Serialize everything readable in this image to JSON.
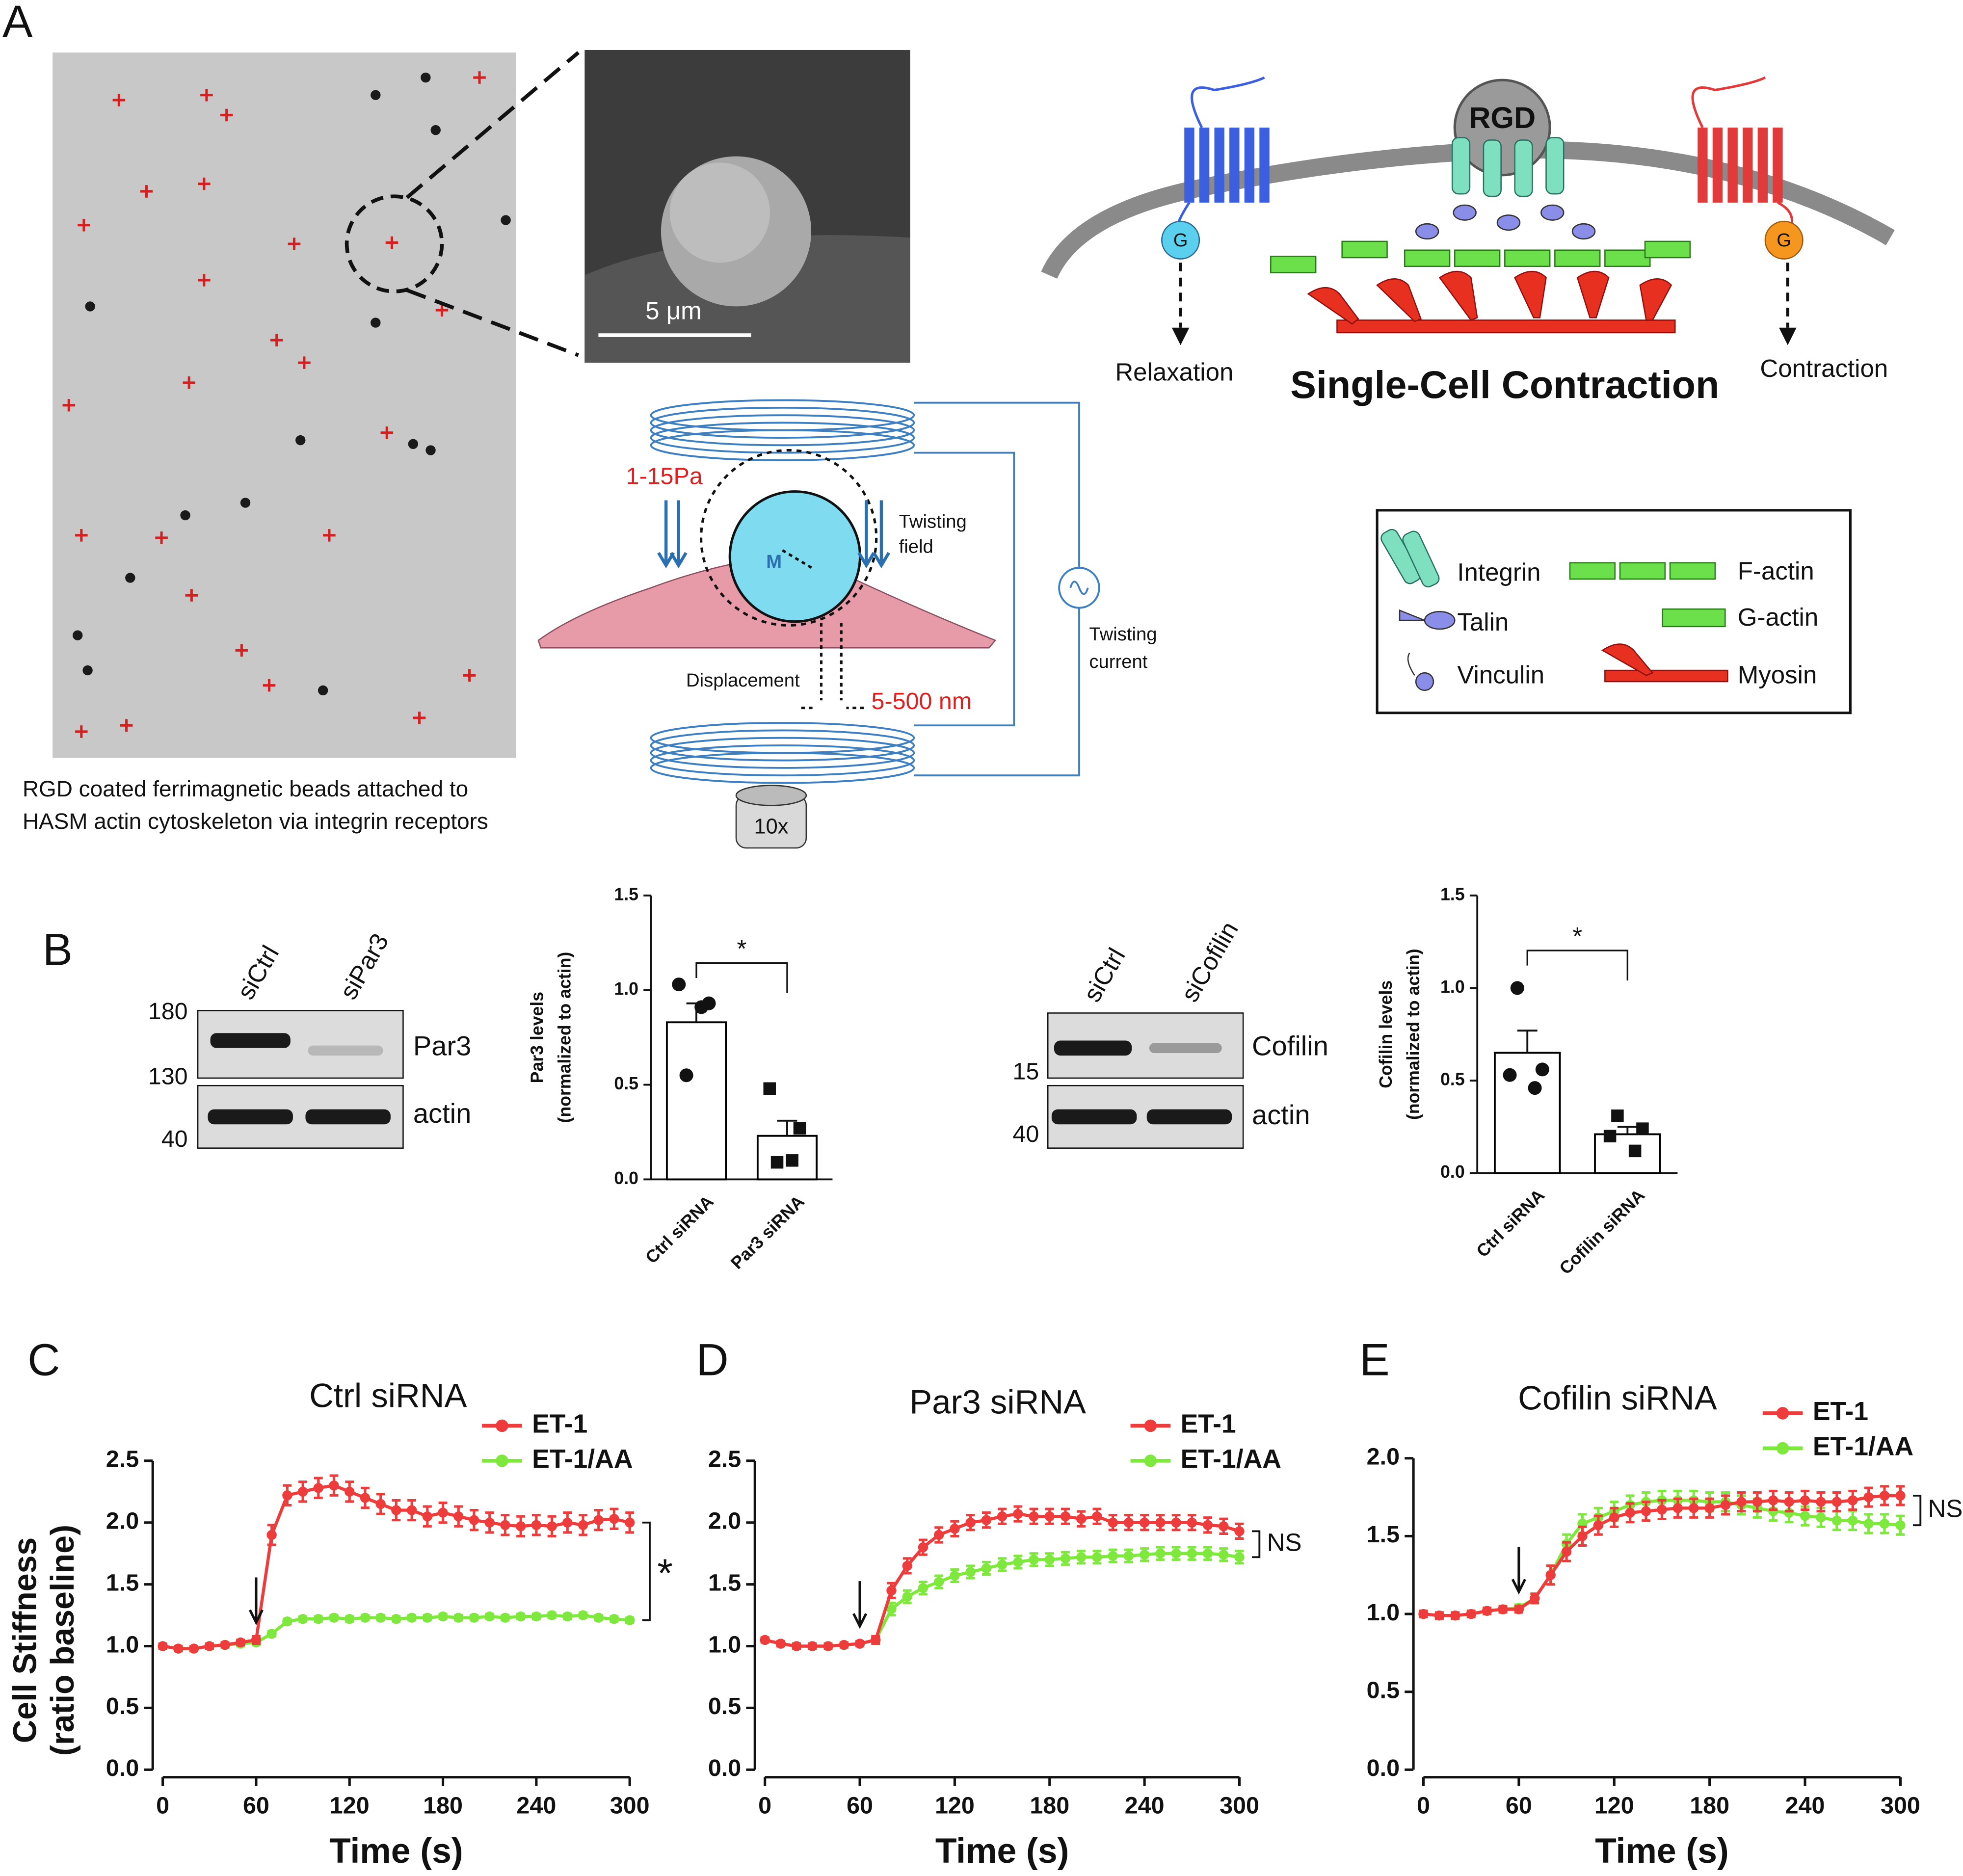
{
  "panel_labels": [
    "A",
    "B",
    "C",
    "D",
    "E"
  ],
  "panel_a": {
    "caption": [
      "RGD coated ferrimagnetic beads attached to",
      "HASM actin cytoskeleton via integrin receptors"
    ],
    "scale_bar": "5 μm",
    "twisting": {
      "stress": "1-15Pa",
      "field": [
        "Twisting",
        "field"
      ],
      "moment": "M",
      "current": [
        "Twisting",
        "current"
      ],
      "displacement": "Displacement",
      "range": "5-500 nm",
      "objective": "10x"
    },
    "schematic": {
      "ligand": "RGD",
      "g_protein_left": "G",
      "g_protein_right": "G",
      "left_outcome": "Relaxation",
      "right_outcome": "Contraction",
      "title": "Single-Cell Contraction"
    },
    "legend": {
      "integrin": "Integrin",
      "f_actin": "F-actin",
      "talin": "Talin",
      "g_actin": "G-actin",
      "vinculin": "Vinculin",
      "myosin": "Myosin"
    }
  },
  "blots": [
    {
      "lanes": [
        "siCtrl",
        "siPar3"
      ],
      "markers": [
        "180",
        "130",
        "40"
      ],
      "bands": [
        "Par3",
        "actin"
      ]
    },
    {
      "lanes": [
        "siCtrl",
        "siCofilin"
      ],
      "markers": [
        "15",
        "40"
      ],
      "bands": [
        "Cofilin",
        "actin"
      ]
    }
  ],
  "chart_data": [
    {
      "type": "bar",
      "ylabel": [
        "Par3 levels",
        "(normalized to actin)"
      ],
      "categories": [
        "Ctrl siRNA",
        "Par3 siRNA"
      ],
      "values": [
        0.83,
        0.23
      ],
      "errors": [
        0.1,
        0.08
      ],
      "points": [
        [
          1.03,
          0.93,
          0.91,
          0.55
        ],
        [
          0.48,
          0.27,
          0.1,
          0.09
        ]
      ],
      "markers": [
        "circle",
        "square"
      ],
      "color": "#ffffff",
      "edgecolor": "#000000",
      "ylim": [
        0,
        1.5
      ],
      "yticks": [
        {
          "value": 0,
          "label": "0.0"
        },
        {
          "value": 0.5,
          "label": "0.5"
        },
        {
          "value": 1,
          "label": "1.0"
        },
        {
          "value": 1.5,
          "label": "1.5"
        }
      ],
      "annotation": "*"
    },
    {
      "type": "bar",
      "ylabel": [
        "Cofilin levels",
        "(normalized to actin)"
      ],
      "categories": [
        "Ctrl siRNA",
        "Cofilin siRNA"
      ],
      "values": [
        0.65,
        0.21
      ],
      "errors": [
        0.12,
        0.04
      ],
      "points": [
        [
          1.0,
          0.56,
          0.53,
          0.46
        ],
        [
          0.31,
          0.24,
          0.2,
          0.12
        ]
      ],
      "markers": [
        "circle",
        "square"
      ],
      "color": "#ffffff",
      "edgecolor": "#000000",
      "ylim": [
        0,
        1.5
      ],
      "yticks": [
        {
          "value": 0,
          "label": "0.0"
        },
        {
          "value": 0.5,
          "label": "0.5"
        },
        {
          "value": 1,
          "label": "1.0"
        },
        {
          "value": 1.5,
          "label": "1.5"
        }
      ],
      "annotation": "*"
    },
    {
      "type": "line",
      "title": "Ctrl siRNA",
      "xlabel": "Time (s)",
      "ylabel": [
        "Cell Stiffness",
        "(ratio baseline)"
      ],
      "x": [
        0,
        10,
        20,
        30,
        40,
        50,
        60,
        70,
        80,
        90,
        100,
        110,
        120,
        130,
        140,
        150,
        160,
        170,
        180,
        190,
        200,
        210,
        220,
        230,
        240,
        250,
        260,
        270,
        280,
        290,
        300
      ],
      "series": [
        {
          "name": "ET-1",
          "color": "#ee3b3b",
          "values": [
            1.0,
            0.98,
            0.98,
            1.0,
            1.01,
            1.03,
            1.05,
            1.9,
            2.22,
            2.25,
            2.28,
            2.3,
            2.25,
            2.2,
            2.15,
            2.1,
            2.1,
            2.05,
            2.08,
            2.05,
            2.02,
            2.0,
            1.98,
            1.97,
            1.98,
            1.97,
            2.0,
            1.98,
            2.02,
            2.03,
            2.0
          ],
          "errors": [
            0.02,
            0.02,
            0.02,
            0.02,
            0.02,
            0.02,
            0.03,
            0.08,
            0.08,
            0.08,
            0.08,
            0.08,
            0.08,
            0.08,
            0.08,
            0.08,
            0.08,
            0.08,
            0.08,
            0.08,
            0.08,
            0.08,
            0.08,
            0.08,
            0.08,
            0.08,
            0.08,
            0.08,
            0.08,
            0.08,
            0.08
          ]
        },
        {
          "name": "ET-1/AA",
          "color": "#7ee83c",
          "values": [
            1.0,
            0.98,
            0.98,
            1.0,
            1.01,
            1.02,
            1.03,
            1.1,
            1.2,
            1.22,
            1.22,
            1.23,
            1.22,
            1.23,
            1.23,
            1.22,
            1.23,
            1.23,
            1.24,
            1.23,
            1.23,
            1.24,
            1.23,
            1.24,
            1.24,
            1.25,
            1.24,
            1.25,
            1.23,
            1.22,
            1.21
          ],
          "errors": [
            0.02,
            0.02,
            0.02,
            0.02,
            0.02,
            0.02,
            0.02,
            0.02,
            0.02,
            0.02,
            0.02,
            0.02,
            0.02,
            0.02,
            0.02,
            0.02,
            0.02,
            0.02,
            0.02,
            0.02,
            0.02,
            0.02,
            0.02,
            0.02,
            0.02,
            0.02,
            0.02,
            0.02,
            0.02,
            0.02,
            0.02
          ]
        }
      ],
      "xlim": [
        0,
        300
      ],
      "xticks": [
        0,
        60,
        120,
        180,
        240,
        300
      ],
      "ylim": [
        0,
        2.5
      ],
      "yticks": [
        {
          "value": 0,
          "label": "0.0"
        },
        {
          "value": 0.5,
          "label": "0.5"
        },
        {
          "value": 1,
          "label": "1.0"
        },
        {
          "value": 1.5,
          "label": "1.5"
        },
        {
          "value": 2,
          "label": "2.0"
        },
        {
          "value": 2.5,
          "label": "2.5"
        }
      ],
      "arrow_at": 60,
      "annotation": "*"
    },
    {
      "type": "line",
      "title": "Par3 siRNA",
      "xlabel": "Time (s)",
      "x": [
        0,
        10,
        20,
        30,
        40,
        50,
        60,
        70,
        80,
        90,
        100,
        110,
        120,
        130,
        140,
        150,
        160,
        170,
        180,
        190,
        200,
        210,
        220,
        230,
        240,
        250,
        260,
        270,
        280,
        290,
        300
      ],
      "series": [
        {
          "name": "ET-1",
          "color": "#ee3b3b",
          "values": [
            1.05,
            1.02,
            1.0,
            1.0,
            1.0,
            1.01,
            1.02,
            1.05,
            1.45,
            1.65,
            1.8,
            1.9,
            1.95,
            2.0,
            2.02,
            2.05,
            2.07,
            2.05,
            2.05,
            2.05,
            2.03,
            2.05,
            2.0,
            2.0,
            2.0,
            2.0,
            2.0,
            2.0,
            1.98,
            1.97,
            1.93
          ],
          "errors": [
            0.02,
            0.02,
            0.02,
            0.02,
            0.02,
            0.02,
            0.02,
            0.03,
            0.06,
            0.06,
            0.06,
            0.06,
            0.06,
            0.06,
            0.06,
            0.06,
            0.06,
            0.06,
            0.06,
            0.06,
            0.06,
            0.06,
            0.06,
            0.06,
            0.06,
            0.06,
            0.06,
            0.06,
            0.06,
            0.06,
            0.06
          ]
        },
        {
          "name": "ET-1/AA",
          "color": "#7ee83c",
          "values": [
            1.05,
            1.02,
            1.0,
            1.0,
            1.0,
            1.01,
            1.02,
            1.05,
            1.3,
            1.4,
            1.47,
            1.52,
            1.57,
            1.6,
            1.63,
            1.66,
            1.68,
            1.7,
            1.7,
            1.71,
            1.72,
            1.72,
            1.73,
            1.73,
            1.74,
            1.75,
            1.75,
            1.75,
            1.75,
            1.74,
            1.72
          ],
          "errors": [
            0.02,
            0.02,
            0.02,
            0.02,
            0.02,
            0.02,
            0.02,
            0.03,
            0.05,
            0.05,
            0.05,
            0.05,
            0.05,
            0.05,
            0.05,
            0.05,
            0.05,
            0.05,
            0.05,
            0.05,
            0.05,
            0.05,
            0.05,
            0.05,
            0.05,
            0.05,
            0.05,
            0.05,
            0.05,
            0.05,
            0.05
          ]
        }
      ],
      "xlim": [
        0,
        300
      ],
      "xticks": [
        0,
        60,
        120,
        180,
        240,
        300
      ],
      "ylim": [
        0,
        2.5
      ],
      "yticks": [
        {
          "value": 0,
          "label": "0.0"
        },
        {
          "value": 0.5,
          "label": "0.5"
        },
        {
          "value": 1,
          "label": "1.0"
        },
        {
          "value": 1.5,
          "label": "1.5"
        },
        {
          "value": 2,
          "label": "2.0"
        },
        {
          "value": 2.5,
          "label": "2.5"
        }
      ],
      "arrow_at": 60,
      "annotation": "NS"
    },
    {
      "type": "line",
      "title": "Cofilin siRNA",
      "xlabel": "Time (s)",
      "x": [
        0,
        10,
        20,
        30,
        40,
        50,
        60,
        70,
        80,
        90,
        100,
        110,
        120,
        130,
        140,
        150,
        160,
        170,
        180,
        190,
        200,
        210,
        220,
        230,
        240,
        250,
        260,
        270,
        280,
        290,
        300
      ],
      "series": [
        {
          "name": "ET-1",
          "color": "#ee3b3b",
          "values": [
            1.0,
            0.99,
            0.99,
            1.0,
            1.02,
            1.03,
            1.03,
            1.1,
            1.25,
            1.4,
            1.5,
            1.57,
            1.62,
            1.65,
            1.66,
            1.67,
            1.68,
            1.68,
            1.68,
            1.7,
            1.72,
            1.72,
            1.73,
            1.72,
            1.73,
            1.72,
            1.72,
            1.73,
            1.75,
            1.76,
            1.76
          ],
          "errors": [
            0.02,
            0.02,
            0.02,
            0.02,
            0.02,
            0.02,
            0.02,
            0.03,
            0.06,
            0.06,
            0.06,
            0.06,
            0.06,
            0.06,
            0.06,
            0.06,
            0.06,
            0.06,
            0.06,
            0.06,
            0.06,
            0.06,
            0.06,
            0.06,
            0.06,
            0.06,
            0.06,
            0.06,
            0.06,
            0.06,
            0.06
          ]
        },
        {
          "name": "ET-1/AA",
          "color": "#7ee83c",
          "values": [
            1.0,
            0.99,
            0.99,
            1.0,
            1.02,
            1.03,
            1.04,
            1.1,
            1.25,
            1.45,
            1.58,
            1.62,
            1.66,
            1.7,
            1.72,
            1.73,
            1.73,
            1.73,
            1.72,
            1.72,
            1.7,
            1.68,
            1.66,
            1.65,
            1.63,
            1.62,
            1.6,
            1.6,
            1.58,
            1.58,
            1.57
          ],
          "errors": [
            0.02,
            0.02,
            0.02,
            0.02,
            0.02,
            0.02,
            0.02,
            0.03,
            0.06,
            0.06,
            0.06,
            0.06,
            0.06,
            0.06,
            0.06,
            0.06,
            0.06,
            0.06,
            0.06,
            0.06,
            0.06,
            0.06,
            0.06,
            0.06,
            0.06,
            0.06,
            0.06,
            0.06,
            0.06,
            0.06,
            0.06
          ]
        }
      ],
      "xlim": [
        0,
        300
      ],
      "xticks": [
        0,
        60,
        120,
        180,
        240,
        300
      ],
      "ylim": [
        0,
        2
      ],
      "yticks": [
        {
          "value": 0,
          "label": "0.0"
        },
        {
          "value": 0.5,
          "label": "0.5"
        },
        {
          "value": 1,
          "label": "1.0"
        },
        {
          "value": 1.5,
          "label": "1.5"
        },
        {
          "value": 2,
          "label": "2.0"
        }
      ],
      "arrow_at": 60,
      "annotation": "NS"
    }
  ]
}
